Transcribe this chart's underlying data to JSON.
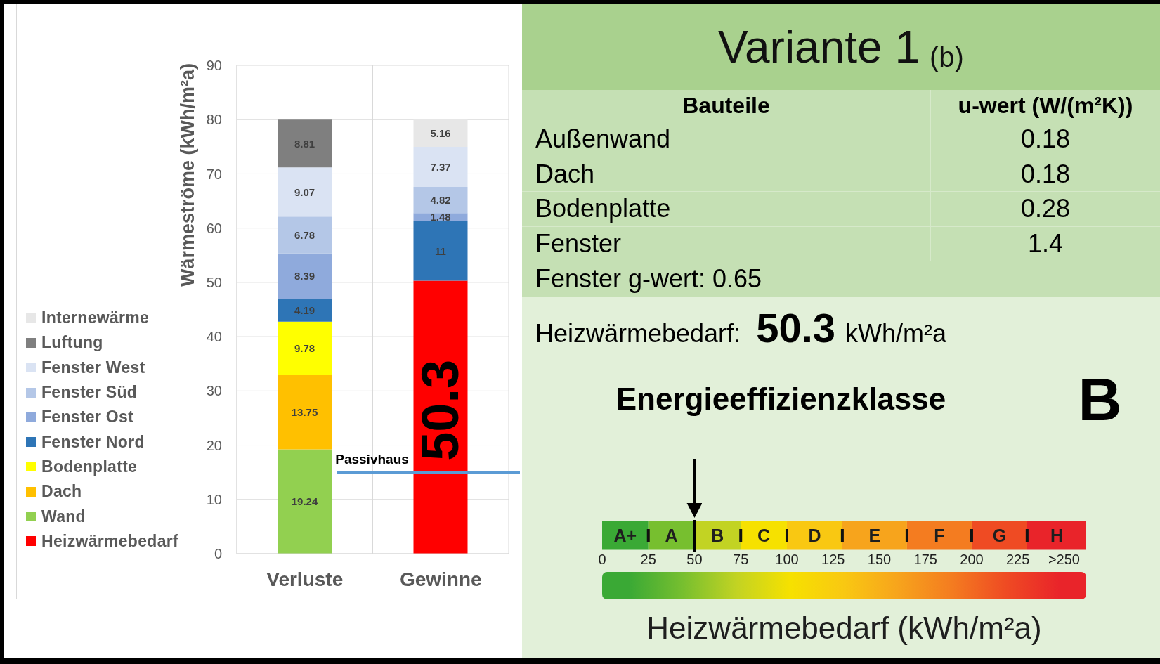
{
  "chart_data": [
    {
      "type": "bar",
      "stacked": true,
      "categories": [
        "Verluste",
        "Gewinne"
      ],
      "ylabel": "Wärmeströme (kWh/m²a)",
      "ylim": [
        0,
        90
      ],
      "yticks": [
        0,
        10,
        20,
        30,
        40,
        50,
        60,
        70,
        80,
        90
      ],
      "grid": true,
      "legend": "left",
      "data_labels": true,
      "series": [
        {
          "name": "Heizwärmebedarf",
          "color": "#ff0000",
          "values": [
            null,
            50.3
          ]
        },
        {
          "name": "Wand",
          "color": "#92d050",
          "values": [
            19.24,
            null
          ]
        },
        {
          "name": "Dach",
          "color": "#ffc000",
          "values": [
            13.75,
            null
          ]
        },
        {
          "name": "Bodenplatte",
          "color": "#ffff00",
          "values": [
            9.78,
            null
          ]
        },
        {
          "name": "Fenster Nord",
          "color": "#2e75b6",
          "values": [
            4.19,
            11
          ]
        },
        {
          "name": "Fenster Ost",
          "color": "#8faadc",
          "values": [
            8.39,
            1.48
          ]
        },
        {
          "name": "Fenster Süd",
          "color": "#b4c7e7",
          "values": [
            6.78,
            4.82
          ]
        },
        {
          "name": "Fenster West",
          "color": "#dae3f3",
          "values": [
            9.07,
            7.37
          ]
        },
        {
          "name": "Luftung",
          "color": "#7f7f7f",
          "values": [
            8.81,
            null
          ]
        },
        {
          "name": "Internewärme",
          "color": "#e7e7e7",
          "values": [
            null,
            5.16
          ]
        }
      ],
      "ref_lines": [
        {
          "axis": "y",
          "value": 15,
          "label": "Passivhaus",
          "color": "#5b9bd5"
        }
      ]
    },
    {
      "type": "other",
      "title": "Variante 1",
      "subtitle": "(b)",
      "xlabel": "Bauteile",
      "ylabel": "u-wert (W/(m²K))",
      "categories": [
        "Außenwand",
        "Dach",
        "Bodenplatte",
        "Fenster"
      ],
      "values": [
        0.18,
        0.18,
        0.28,
        1.4
      ],
      "data_labels": true,
      "annotations": [
        "Fenster g-wert: 0.65",
        "Heizwärmebedarf:",
        "50.3",
        "kWh/m²a",
        "Energieeffizienzklasse",
        "B"
      ]
    },
    {
      "type": "bar",
      "orientation": "horizontal",
      "stacked": true,
      "categories": [
        null
      ],
      "series": [
        {
          "name": "A+",
          "color": "#3aa935",
          "values": [
            25
          ]
        },
        {
          "name": "A",
          "color": "#77bf2f",
          "values": [
            25
          ]
        },
        {
          "name": "B",
          "color": "#c2d323",
          "values": [
            25
          ]
        },
        {
          "name": "C",
          "color": "#f6e100",
          "values": [
            25
          ]
        },
        {
          "name": "D",
          "color": "#f9c812",
          "values": [
            30
          ]
        },
        {
          "name": "E",
          "color": "#f7a41c",
          "values": [
            35
          ]
        },
        {
          "name": "F",
          "color": "#f47c20",
          "values": [
            35
          ]
        },
        {
          "name": "G",
          "color": "#ef4b23",
          "values": [
            30
          ]
        },
        {
          "name": "H",
          "color": "#e9242a",
          "values": [
            32
          ]
        }
      ],
      "xlim": [
        0,
        262
      ],
      "xticks": [
        0,
        25,
        50,
        75,
        100,
        125,
        150,
        175,
        200,
        225,
        {
          "value": 250,
          "label": ">250"
        }
      ],
      "xlabel": "Heizwärmebedarf (kWh/m²a)",
      "ref_lines": [
        {
          "axis": "x",
          "value": 50,
          "color": "#000000"
        }
      ]
    }
  ]
}
